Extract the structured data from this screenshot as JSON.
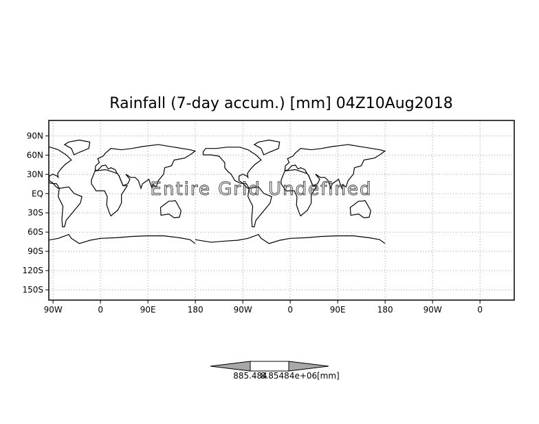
{
  "chart_data": {
    "type": "map",
    "title": "Rainfall (7-day accum.) [mm] 04Z10Aug2018",
    "annotation": "Entire Grid Undefined",
    "xlim": [
      -98,
      785
    ],
    "ylim": [
      -166,
      114
    ],
    "xticks": [
      {
        "value": -90,
        "label": "90W"
      },
      0,
      {
        "value": 90,
        "label": "90E"
      },
      180,
      {
        "value": 270,
        "label": "90W"
      },
      {
        "value": 360,
        "label": "0"
      },
      {
        "value": 450,
        "label": "90E"
      },
      {
        "value": 540,
        "label": "180"
      },
      {
        "value": 630,
        "label": "90W"
      },
      {
        "value": 720,
        "label": "0"
      }
    ],
    "yticks": [
      {
        "value": 90,
        "label": "90N"
      },
      {
        "value": 60,
        "label": "60N"
      },
      {
        "value": 30,
        "label": "30N"
      },
      {
        "value": 0,
        "label": "EQ"
      },
      {
        "value": -30,
        "label": "30S"
      },
      {
        "value": -60,
        "label": "60S"
      },
      {
        "value": -90,
        "label": "90S"
      },
      {
        "value": -120,
        "label": "120S"
      },
      {
        "value": -150,
        "label": "150S"
      }
    ],
    "grid": true,
    "colorbar": {
      "labels": [
        "885.484",
        "8.85484e+06"
      ],
      "unit": "[mm]"
    }
  }
}
